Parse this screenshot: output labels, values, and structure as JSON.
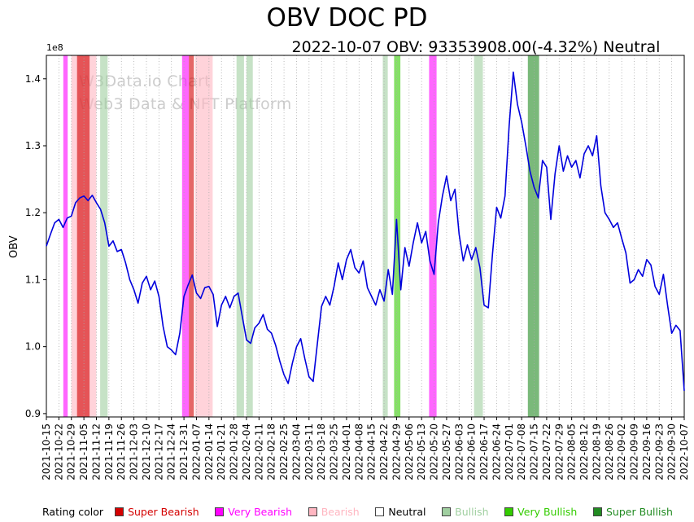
{
  "title": "OBV DOC PD",
  "subtitle": "2022-10-07 OBV: 93353908.00(-4.32%) Neutral",
  "watermark": {
    "line1": "W3Data.io Chart",
    "line2": "Web3 Data & NFT Platform"
  },
  "y_offset_label": "1e8",
  "legend": {
    "caption": "Rating color",
    "items": [
      {
        "label": "Super Bearish",
        "color": "#d40000"
      },
      {
        "label": "Very Bearish",
        "color": "#ff00ff"
      },
      {
        "label": "Bearish",
        "color": "#ffb6c1"
      },
      {
        "label": "Neutral",
        "color": "#ffffff",
        "text_color": "#000000"
      },
      {
        "label": "Bullish",
        "color": "#a0cfa0"
      },
      {
        "label": "Very Bullish",
        "color": "#33cc00"
      },
      {
        "label": "Super Bullish",
        "color": "#228B22"
      }
    ]
  },
  "chart_data": {
    "type": "line",
    "title": "OBV DOC PD",
    "ylabel": "OBV",
    "y_scale_note": "values are in units of 1e8",
    "line_color": "#0000dd",
    "ylim": [
      0.895,
      1.435
    ],
    "yticks": [
      0.9,
      1.0,
      1.1,
      1.2,
      1.3,
      1.4
    ],
    "grid": "vertical-dotted",
    "legend_position": "bottom",
    "last_point": {
      "date": "2022-10-07",
      "obv": 93353908.0,
      "change_pct": -4.32,
      "rating": "Neutral"
    },
    "x_tick_labels": [
      "2021-10-15",
      "2021-10-22",
      "2021-10-29",
      "2021-11-05",
      "2021-11-12",
      "2021-11-19",
      "2021-11-26",
      "2021-12-03",
      "2021-12-10",
      "2021-12-17",
      "2021-12-24",
      "2021-12-31",
      "2022-01-07",
      "2022-01-14",
      "2022-01-21",
      "2022-01-28",
      "2022-02-04",
      "2022-02-11",
      "2022-02-18",
      "2022-02-25",
      "2022-03-04",
      "2022-03-11",
      "2022-03-18",
      "2022-03-25",
      "2022-04-01",
      "2022-04-08",
      "2022-04-15",
      "2022-04-22",
      "2022-04-29",
      "2022-05-06",
      "2022-05-13",
      "2022-05-20",
      "2022-05-27",
      "2022-06-03",
      "2022-06-10",
      "2022-06-17",
      "2022-06-24",
      "2022-07-01",
      "2022-07-08",
      "2022-07-15",
      "2022-07-22",
      "2022-07-29",
      "2022-08-05",
      "2022-08-12",
      "2022-08-19",
      "2022-08-26",
      "2022-09-02",
      "2022-09-09",
      "2022-09-16",
      "2022-09-23",
      "2022-09-30",
      "2022-10-07"
    ],
    "points_per_week": 3,
    "values": [
      1.15,
      1.168,
      1.185,
      1.19,
      1.178,
      1.192,
      1.195,
      1.215,
      1.222,
      1.225,
      1.218,
      1.226,
      1.215,
      1.205,
      1.185,
      1.15,
      1.158,
      1.142,
      1.145,
      1.125,
      1.1,
      1.085,
      1.065,
      1.095,
      1.105,
      1.085,
      1.098,
      1.075,
      1.03,
      1.0,
      0.995,
      0.988,
      1.02,
      1.075,
      1.092,
      1.107,
      1.08,
      1.072,
      1.088,
      1.09,
      1.078,
      1.03,
      1.062,
      1.075,
      1.058,
      1.075,
      1.08,
      1.045,
      1.01,
      1.005,
      1.028,
      1.035,
      1.048,
      1.026,
      1.02,
      1.002,
      0.978,
      0.958,
      0.945,
      0.975,
      1.0,
      1.012,
      0.982,
      0.955,
      0.948,
      1.005,
      1.06,
      1.075,
      1.062,
      1.09,
      1.125,
      1.1,
      1.13,
      1.145,
      1.118,
      1.11,
      1.128,
      1.088,
      1.075,
      1.062,
      1.085,
      1.068,
      1.115,
      1.078,
      1.19,
      1.085,
      1.148,
      1.12,
      1.155,
      1.185,
      1.155,
      1.172,
      1.128,
      1.108,
      1.185,
      1.225,
      1.255,
      1.218,
      1.235,
      1.168,
      1.128,
      1.152,
      1.13,
      1.148,
      1.118,
      1.062,
      1.058,
      1.138,
      1.208,
      1.192,
      1.225,
      1.33,
      1.41,
      1.362,
      1.335,
      1.3,
      1.262,
      1.238,
      1.222,
      1.278,
      1.268,
      1.19,
      1.258,
      1.3,
      1.262,
      1.285,
      1.268,
      1.278,
      1.252,
      1.288,
      1.3,
      1.285,
      1.315,
      1.24,
      1.2,
      1.19,
      1.178,
      1.185,
      1.162,
      1.14,
      1.095,
      1.1,
      1.115,
      1.105,
      1.13,
      1.122,
      1.09,
      1.078,
      1.108,
      1.062,
      1.02,
      1.032,
      1.024,
      0.934
    ],
    "bands": [
      {
        "from": 1.35,
        "to": 1.7,
        "rating": "very_bearish"
      },
      {
        "from": 2.0,
        "to": 4.0,
        "rating": "bearish"
      },
      {
        "from": 2.45,
        "to": 3.45,
        "rating": "super_bearish"
      },
      {
        "from": 4.3,
        "to": 4.9,
        "rating": "bullish"
      },
      {
        "from": 10.85,
        "to": 11.4,
        "rating": "very_bearish"
      },
      {
        "from": 11.4,
        "to": 11.8,
        "rating": "super_bearish"
      },
      {
        "from": 11.9,
        "to": 13.3,
        "rating": "bearish"
      },
      {
        "from": 15.2,
        "to": 15.8,
        "rating": "bullish"
      },
      {
        "from": 16.0,
        "to": 16.5,
        "rating": "bullish"
      },
      {
        "from": 26.9,
        "to": 27.3,
        "rating": "bullish"
      },
      {
        "from": 27.8,
        "to": 28.3,
        "rating": "very_bullish"
      },
      {
        "from": 30.6,
        "to": 31.2,
        "rating": "very_bearish"
      },
      {
        "from": 34.2,
        "to": 34.9,
        "rating": "bullish"
      },
      {
        "from": 38.5,
        "to": 39.4,
        "rating": "super_bullish"
      }
    ],
    "rating_colors": {
      "super_bearish": "#d40000",
      "very_bearish": "#ff00ff",
      "bearish": "#ffb6c1",
      "neutral": "#ffffff",
      "bullish": "#a0cfa0",
      "very_bullish": "#33cc00",
      "super_bullish": "#228B22"
    },
    "band_opacity": 0.6
  }
}
